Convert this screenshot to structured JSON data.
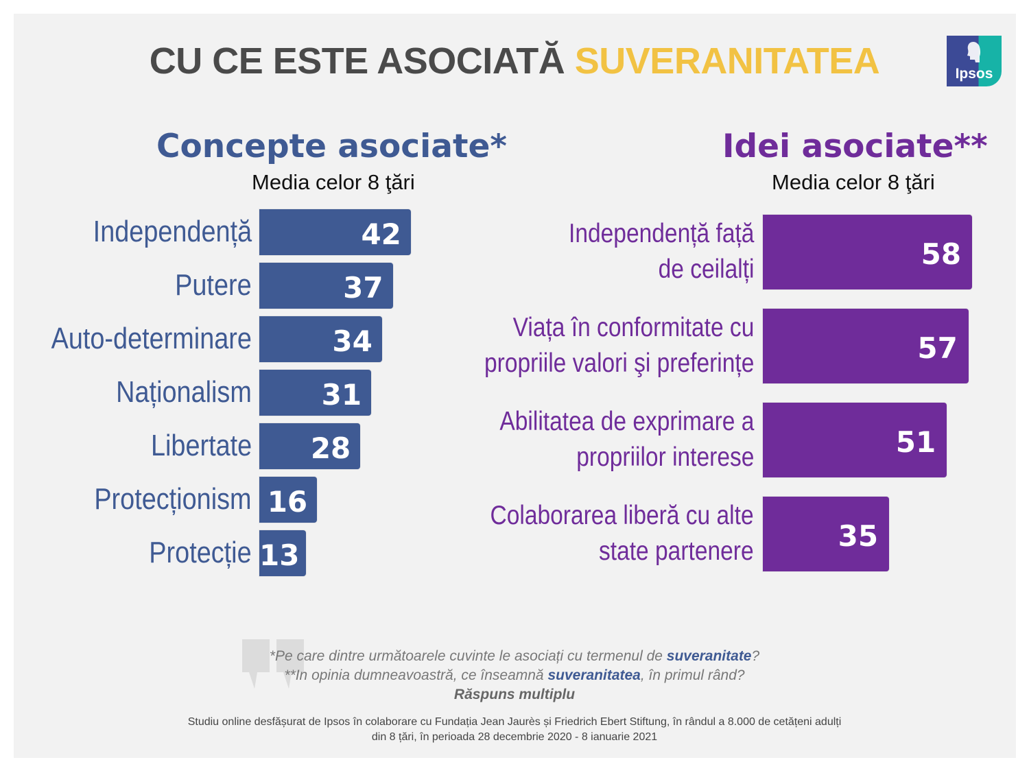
{
  "title": {
    "part1": "CU CE ESTE ASOCIATĂ",
    "part2": "SUVERANITATEA"
  },
  "logo": {
    "text": "Ipsos"
  },
  "colors": {
    "blue": "#3f5a93",
    "purple": "#6f2c9a",
    "yellow": "#f2c243",
    "background": "#f2f2f2"
  },
  "chart_data": [
    {
      "type": "bar",
      "orientation": "horizontal",
      "title": "Concepte asociate*",
      "subtitle": "Media celor 8 ţări",
      "categories": [
        "Independență",
        "Putere",
        "Auto-determinare",
        "Naționalism",
        "Libertate",
        "Protecționism",
        "Protecție"
      ],
      "values": [
        42,
        37,
        34,
        31,
        28,
        16,
        13
      ],
      "color": "#3f5a93"
    },
    {
      "type": "bar",
      "orientation": "horizontal",
      "title": "Idei asociate**",
      "subtitle": "Media celor 8 ţări",
      "categories": [
        [
          "Independență față",
          "de ceilalți"
        ],
        [
          "Viața în conformitate cu",
          "propriile valori şi preferințe"
        ],
        [
          "Abilitatea de exprimare a",
          "propriilor interese"
        ],
        [
          "Colaborarea liberă cu alte",
          "state partenere"
        ]
      ],
      "values": [
        58,
        57,
        51,
        35
      ],
      "color": "#6f2c9a"
    }
  ],
  "notes": {
    "line1_a": "*Pe care dintre următoarele cuvinte le asociați cu termenul de ",
    "line1_kw": "suveranitate",
    "line1_b": "?",
    "line2_a": "**In opinia dumneavoastră, ce înseamnă ",
    "line2_kw": "suveranitatea",
    "line2_b": ", în primul rând?",
    "line3": "Răspuns multiplu"
  },
  "footer": {
    "line1": "Studiu online desfășurat de Ipsos în colaborare cu Fundația Jean Jaurès și Friedrich Ebert Stiftung, în rândul a 8.000 de cetățeni adulți",
    "line2": "din 8 țări, în perioada 28 decembrie 2020 - 8 ianuarie 2021"
  }
}
